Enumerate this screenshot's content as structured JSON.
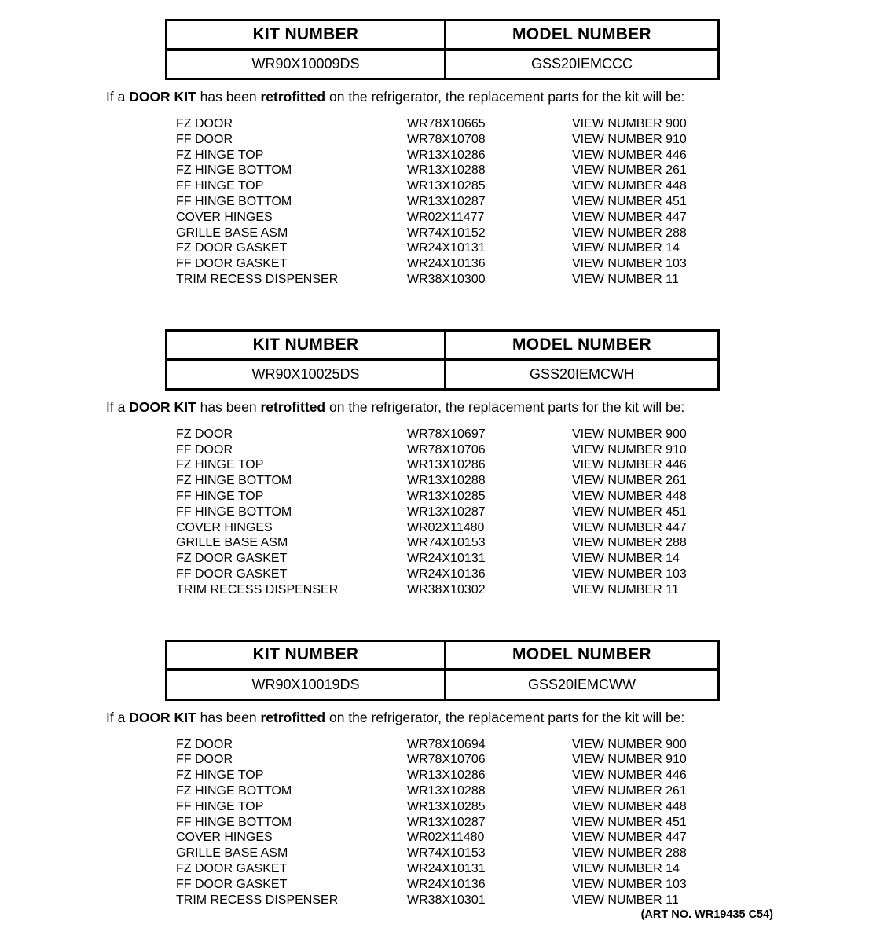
{
  "table_headers": {
    "kit": "KIT NUMBER",
    "model": "MODEL NUMBER"
  },
  "intro": {
    "pre": "If a ",
    "bold1": "DOOR KIT",
    "mid": " has been ",
    "bold2": "retrofitted",
    "post": " on the refrigerator, the replacement parts for the kit will be:"
  },
  "footer": {
    "art_no": "(ART NO. WR19435 C54)"
  },
  "colors": {
    "text": "#000000",
    "background": "#ffffff",
    "table_border": "#000000"
  },
  "sections": [
    {
      "kit_number": "WR90X10009DS",
      "model_number": "GSS20IEMCCC",
      "parts": [
        {
          "name": "FZ DOOR",
          "part_number": "WR78X10665",
          "view": "VIEW NUMBER 900"
        },
        {
          "name": "FF DOOR",
          "part_number": "WR78X10708",
          "view": "VIEW NUMBER 910"
        },
        {
          "name": "FZ HINGE TOP",
          "part_number": "WR13X10286",
          "view": "VIEW NUMBER 446"
        },
        {
          "name": "FZ HINGE BOTTOM",
          "part_number": "WR13X10288",
          "view": "VIEW NUMBER 261"
        },
        {
          "name": "FF HINGE TOP",
          "part_number": "WR13X10285",
          "view": "VIEW NUMBER 448"
        },
        {
          "name": "FF HINGE BOTTOM",
          "part_number": "WR13X10287",
          "view": "VIEW NUMBER 451"
        },
        {
          "name": "COVER HINGES",
          "part_number": "WR02X11477",
          "view": "VIEW NUMBER 447"
        },
        {
          "name": "GRILLE BASE ASM",
          "part_number": "WR74X10152",
          "view": "VIEW NUMBER 288"
        },
        {
          "name": "FZ DOOR GASKET",
          "part_number": "WR24X10131",
          "view": "VIEW NUMBER 14"
        },
        {
          "name": "FF DOOR GASKET",
          "part_number": "WR24X10136",
          "view": "VIEW NUMBER 103"
        },
        {
          "name": "TRIM RECESS DISPENSER",
          "part_number": "WR38X10300",
          "view": "VIEW NUMBER 11"
        }
      ]
    },
    {
      "kit_number": "WR90X10025DS",
      "model_number": "GSS20IEMCWH",
      "parts": [
        {
          "name": "FZ DOOR",
          "part_number": "WR78X10697",
          "view": "VIEW NUMBER 900"
        },
        {
          "name": "FF DOOR",
          "part_number": "WR78X10706",
          "view": "VIEW NUMBER 910"
        },
        {
          "name": "FZ HINGE TOP",
          "part_number": "WR13X10286",
          "view": "VIEW NUMBER 446"
        },
        {
          "name": "FZ HINGE BOTTOM",
          "part_number": "WR13X10288",
          "view": "VIEW NUMBER 261"
        },
        {
          "name": "FF HINGE TOP",
          "part_number": "WR13X10285",
          "view": "VIEW NUMBER 448"
        },
        {
          "name": "FF HINGE BOTTOM",
          "part_number": "WR13X10287",
          "view": "VIEW NUMBER 451"
        },
        {
          "name": "COVER HINGES",
          "part_number": "WR02X11480",
          "view": "VIEW NUMBER 447"
        },
        {
          "name": "GRILLE BASE ASM",
          "part_number": "WR74X10153",
          "view": "VIEW NUMBER 288"
        },
        {
          "name": "FZ DOOR GASKET",
          "part_number": "WR24X10131",
          "view": "VIEW NUMBER 14"
        },
        {
          "name": "FF DOOR GASKET",
          "part_number": "WR24X10136",
          "view": "VIEW NUMBER 103"
        },
        {
          "name": "TRIM RECESS DISPENSER",
          "part_number": "WR38X10302",
          "view": "VIEW NUMBER 11"
        }
      ]
    },
    {
      "kit_number": "WR90X10019DS",
      "model_number": "GSS20IEMCWW",
      "parts": [
        {
          "name": "FZ DOOR",
          "part_number": "WR78X10694",
          "view": "VIEW NUMBER 900"
        },
        {
          "name": "FF DOOR",
          "part_number": "WR78X10706",
          "view": "VIEW NUMBER 910"
        },
        {
          "name": "FZ HINGE TOP",
          "part_number": "WR13X10286",
          "view": "VIEW NUMBER 446"
        },
        {
          "name": "FZ HINGE BOTTOM",
          "part_number": "WR13X10288",
          "view": "VIEW NUMBER 261"
        },
        {
          "name": "FF HINGE TOP",
          "part_number": "WR13X10285",
          "view": "VIEW NUMBER 448"
        },
        {
          "name": "FF HINGE BOTTOM",
          "part_number": "WR13X10287",
          "view": "VIEW NUMBER 451"
        },
        {
          "name": "COVER HINGES",
          "part_number": "WR02X11480",
          "view": "VIEW NUMBER 447"
        },
        {
          "name": "GRILLE BASE ASM",
          "part_number": "WR74X10153",
          "view": "VIEW NUMBER 288"
        },
        {
          "name": "FZ DOOR GASKET",
          "part_number": "WR24X10131",
          "view": "VIEW NUMBER 14"
        },
        {
          "name": "FF DOOR GASKET",
          "part_number": "WR24X10136",
          "view": "VIEW NUMBER 103"
        },
        {
          "name": "TRIM RECESS DISPENSER",
          "part_number": "WR38X10301",
          "view": "VIEW NUMBER 11"
        }
      ]
    }
  ]
}
